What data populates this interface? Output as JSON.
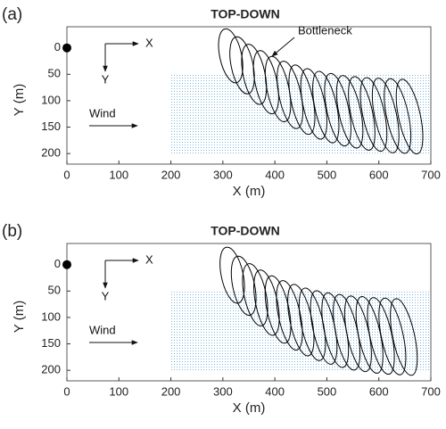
{
  "chart_data": [
    {
      "type": "loops",
      "panel_label": "(a)",
      "title": "TOP-DOWN",
      "xlabel": "X (m)",
      "ylabel": "Y (m)",
      "xlim": [
        0,
        700
      ],
      "xticks": [
        0,
        100,
        200,
        300,
        400,
        500,
        600,
        700
      ],
      "ylim": [
        -40,
        220
      ],
      "yticks": [
        0,
        50,
        100,
        150,
        200
      ],
      "y_reversed": true,
      "region": {
        "x": [
          200,
          700
        ],
        "y": [
          50,
          200
        ],
        "color": "#7fb8e0"
      },
      "marker": {
        "x": 0,
        "y": 0,
        "color": "#000000"
      },
      "line_color": "#000000",
      "loop_width": 42,
      "loops": {
        "x": [
          315,
          337,
          360,
          383,
          406,
          429,
          452,
          475,
          498,
          521,
          544,
          567,
          590,
          613,
          636,
          659
        ],
        "y": [
          15,
          33,
          50,
          65,
          78,
          89,
          98,
          106,
          112,
          117,
          121,
          124,
          126,
          128,
          129,
          130
        ],
        "height": [
          104,
          110,
          116,
          122,
          126,
          130,
          134,
          136,
          138,
          140,
          140,
          142,
          142,
          144,
          144,
          144
        ]
      },
      "annotations": [
        "X",
        "Y",
        "Wind",
        "Bottleneck"
      ]
    },
    {
      "type": "loops",
      "panel_label": "(b)",
      "title": "TOP-DOWN",
      "xlabel": "X (m)",
      "ylabel": "Y (m)",
      "xlim": [
        0,
        700
      ],
      "xticks": [
        0,
        100,
        200,
        300,
        400,
        500,
        600,
        700
      ],
      "ylim": [
        -40,
        220
      ],
      "yticks": [
        0,
        50,
        100,
        150,
        200
      ],
      "y_reversed": true,
      "region": {
        "x": [
          200,
          700
        ],
        "y": [
          50,
          200
        ],
        "color": "#7fb8e0"
      },
      "marker": {
        "x": 0,
        "y": 0,
        "color": "#000000"
      },
      "line_color": "#000000",
      "loop_width": 42,
      "loops": {
        "x": [
          318,
          340,
          362,
          384,
          406,
          428,
          450,
          472,
          494,
          516,
          538,
          560,
          582,
          604,
          626,
          648
        ],
        "y": [
          20,
          40,
          57,
          72,
          85,
          96,
          105,
          113,
          119,
          124,
          128,
          131,
          133,
          135,
          136,
          137
        ],
        "height": [
          108,
          114,
          120,
          126,
          130,
          134,
          138,
          140,
          142,
          144,
          146,
          146,
          148,
          148,
          148,
          148
        ]
      },
      "annotations": [
        "X",
        "Y",
        "Wind"
      ]
    }
  ]
}
